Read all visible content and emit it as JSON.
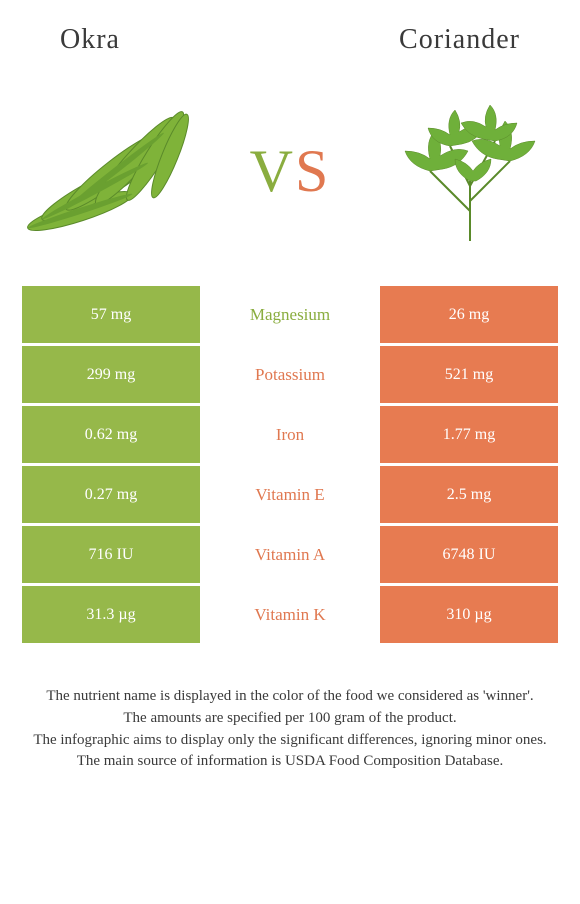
{
  "header": {
    "left": "Okra",
    "right": "Coriander"
  },
  "vs": {
    "v": "V",
    "s": "S"
  },
  "colors": {
    "okra": "#96b84a",
    "coriander": "#e77b51",
    "okra_text": "#8aad3f",
    "coriander_text": "#e07850"
  },
  "rows": [
    {
      "nutrient": "Magnesium",
      "left": "57 mg",
      "right": "26 mg",
      "winner": "okra"
    },
    {
      "nutrient": "Potassium",
      "left": "299 mg",
      "right": "521 mg",
      "winner": "coriander"
    },
    {
      "nutrient": "Iron",
      "left": "0.62 mg",
      "right": "1.77 mg",
      "winner": "coriander"
    },
    {
      "nutrient": "Vitamin E",
      "left": "0.27 mg",
      "right": "2.5 mg",
      "winner": "coriander"
    },
    {
      "nutrient": "Vitamin A",
      "left": "716 IU",
      "right": "6748 IU",
      "winner": "coriander"
    },
    {
      "nutrient": "Vitamin K",
      "left": "31.3 µg",
      "right": "310 µg",
      "winner": "coriander"
    }
  ],
  "footer": {
    "line1": "The nutrient name is displayed in the color of the food we considered as 'winner'.",
    "line2": "The amounts are specified per 100 gram of the product.",
    "line3": "The infographic aims to display only the significant differences, ignoring minor ones.",
    "line4": "The main source of information is USDA Food Composition Database."
  }
}
